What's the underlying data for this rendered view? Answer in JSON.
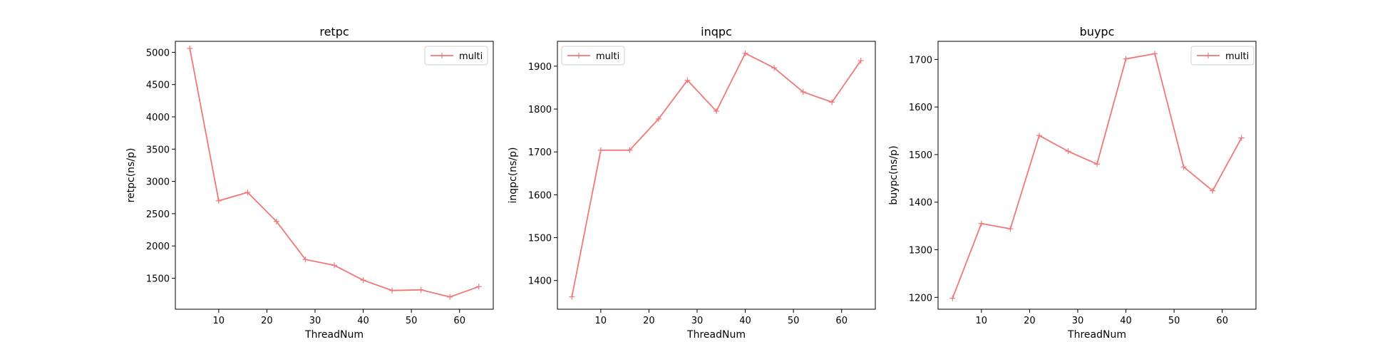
{
  "chart_data": [
    {
      "type": "line",
      "title": "retpc",
      "xlabel": "ThreadNum",
      "ylabel": "retpc(ns/p)",
      "x": [
        4,
        10,
        16,
        22,
        28,
        34,
        40,
        46,
        52,
        58,
        64
      ],
      "xlim": [
        1,
        67
      ],
      "xticks": [
        10,
        20,
        30,
        40,
        50,
        60
      ],
      "ylim": [
        1020,
        5170
      ],
      "yticks": [
        1500,
        2000,
        2500,
        3000,
        3500,
        4000,
        4500,
        5000
      ],
      "legend": "upper right",
      "series": [
        {
          "name": "multi",
          "color": "#f07878",
          "values": [
            5060,
            2700,
            2830,
            2380,
            1790,
            1700,
            1470,
            1310,
            1320,
            1210,
            1370
          ]
        }
      ]
    },
    {
      "type": "line",
      "title": "inqpc",
      "xlabel": "ThreadNum",
      "ylabel": "inqpc(ns/p)",
      "x": [
        4,
        10,
        16,
        22,
        28,
        34,
        40,
        46,
        52,
        58,
        64
      ],
      "xlim": [
        1,
        67
      ],
      "xticks": [
        10,
        20,
        30,
        40,
        50,
        60
      ],
      "ylim": [
        1333,
        1958
      ],
      "yticks": [
        1400,
        1500,
        1600,
        1700,
        1800,
        1900
      ],
      "legend": "upper left",
      "series": [
        {
          "name": "multi",
          "color": "#f07878",
          "values": [
            1362,
            1704,
            1704,
            1777,
            1867,
            1795,
            1930,
            1896,
            1840,
            1816,
            1913
          ]
        }
      ]
    },
    {
      "type": "line",
      "title": "buypc",
      "xlabel": "ThreadNum",
      "ylabel": "buypc(ns/p)",
      "x": [
        4,
        10,
        16,
        22,
        28,
        34,
        40,
        46,
        52,
        58,
        64
      ],
      "xlim": [
        1,
        67
      ],
      "xticks": [
        10,
        20,
        30,
        40,
        50,
        60
      ],
      "ylim": [
        1175,
        1738
      ],
      "yticks": [
        1200,
        1300,
        1400,
        1500,
        1600,
        1700
      ],
      "legend": "upper right",
      "series": [
        {
          "name": "multi",
          "color": "#f07878",
          "values": [
            1198,
            1355,
            1344,
            1540,
            1507,
            1480,
            1701,
            1712,
            1474,
            1424,
            1535
          ]
        }
      ]
    }
  ]
}
